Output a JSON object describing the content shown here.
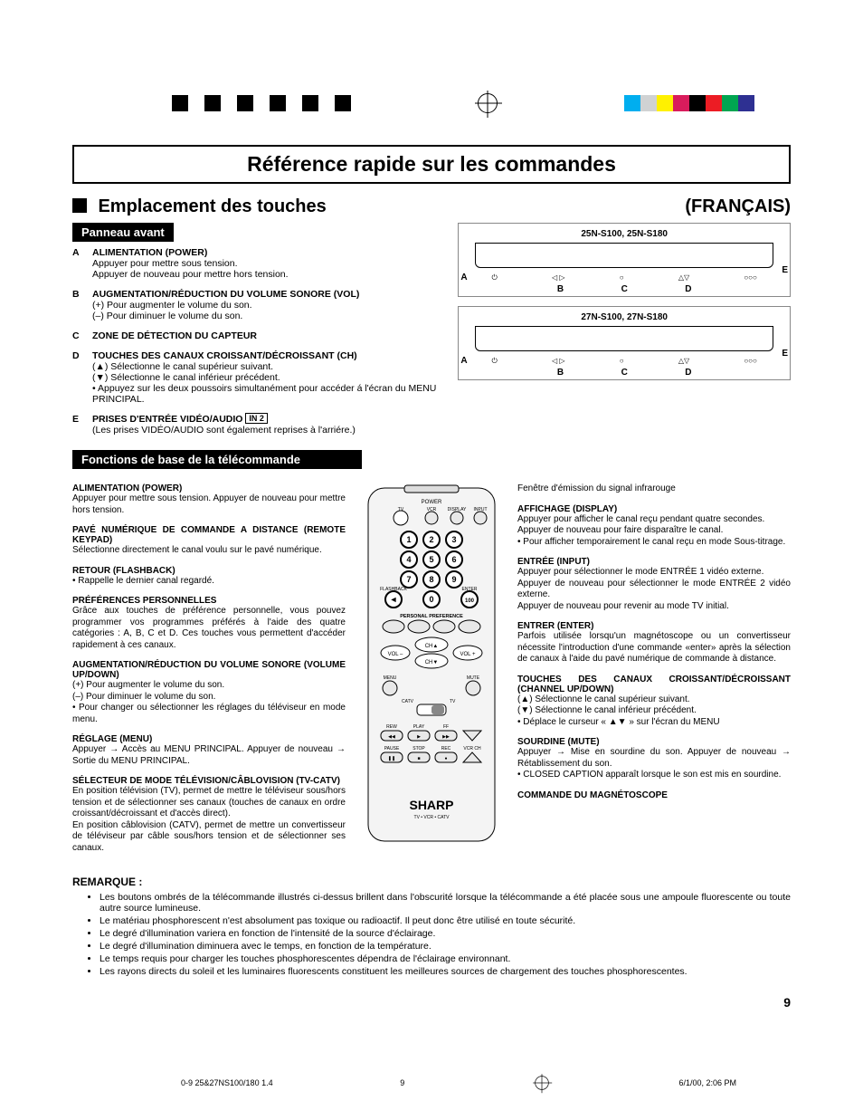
{
  "print_marks": {
    "left_bar_colors": [
      "#000",
      "#fff",
      "#000",
      "#fff",
      "#000",
      "#fff",
      "#000",
      "#fff",
      "#000",
      "#fff",
      "#000"
    ],
    "right_bar_colors": [
      "#00aeef",
      "#d0d2d3",
      "#fff100",
      "#d91c5c",
      "#000000",
      "#ec1c24",
      "#00a551",
      "#2e3092"
    ]
  },
  "title": "Référence rapide sur les commandes",
  "subtitle": "Emplacement des touches",
  "language": "(FRANÇAIS)",
  "section_front_panel": "Panneau avant",
  "front_items": [
    {
      "letter": "A",
      "title": "ALIMENTATION (POWER)",
      "lines": [
        "Appuyer pour mettre sous tension.",
        "Appuyer de nouveau pour mettre hors tension."
      ]
    },
    {
      "letter": "B",
      "title": "AUGMENTATION/RÉDUCTION DU VOLUME SONORE (VOL)",
      "lines": [
        "(+) Pour augmenter le volume du son.",
        "(–) Pour diminuer le volume du son."
      ]
    },
    {
      "letter": "C",
      "title": "ZONE DE DÉTECTION DU CAPTEUR",
      "lines": []
    },
    {
      "letter": "D",
      "title": "TOUCHES DES CANAUX CROISSANT/DÉCROISSANT (CH)",
      "lines": [
        "(▲) Sélectionne le canal supérieur suivant.",
        "(▼) Sélectionne le canal inférieur précédent.",
        "• Appuyez sur les deux poussoirs simultanément pour accéder á l'écran du MENU PRINCIPAL."
      ]
    },
    {
      "letter": "E",
      "title": "PRISES D'ENTRÉE VIDÉO/AUDIO",
      "badge": "IN 2",
      "lines": [
        "(Les prises VIDÉO/AUDIO sont également reprises à l'arriére.)"
      ]
    }
  ],
  "section_remote": "Fonctions de base de la télécommande",
  "panel1_caption": "25N-S100, 25N-S180",
  "panel2_caption": "27N-S100, 27N-S180",
  "panel_letters": [
    "A",
    "B",
    "C",
    "D",
    "E"
  ],
  "ir_window_label": "Fenêtre d'émission du signal infrarouge",
  "left_funcs": [
    {
      "title": "ALIMENTATION (POWER)",
      "body": "Appuyer pour mettre sous tension. Appuyer de nouveau pour mettre hors tension."
    },
    {
      "title": "PAVÉ NUMÉRIQUE DE COMMANDE A DISTANCE (REMOTE KEYPAD)",
      "body": "Sélectionne directement le canal voulu sur le pavé numérique."
    },
    {
      "title": "RETOUR (FLASHBACK)",
      "body": "• Rappelle le dernier canal regardé."
    },
    {
      "title": "PRÉFÉRENCES PERSONNELLES",
      "body": "Grâce aux touches de préférence personnelle, vous pouvez programmer vos programmes préférés à l'aide des quatre catégories : A, B, C et D. Ces touches vous permettent d'accéder rapidement à ces canaux."
    },
    {
      "title": "AUGMENTATION/RÉDUCTION DU VOLUME SONORE (VOLUME UP/DOWN)",
      "body": "(+) Pour augmenter le volume du son.\n(–) Pour diminuer le volume du son.\n• Pour changer ou sélectionner les réglages du téléviseur en mode menu."
    },
    {
      "title": "RÉGLAGE (MENU)",
      "body": "Appuyer → Accès au MENU PRINCIPAL. Appuyer de nouveau → Sortie du MENU PRINCIPAL."
    },
    {
      "title": "SÉLECTEUR DE MODE TÉLÉVISION/CÂBLOVISION (TV-CATV)",
      "body": "En position télévision (TV), permet de mettre le téléviseur sous/hors tension et de sélectionner ses canaux (touches de canaux en ordre croissant/décroissant et d'accès direct).\nEn position câblovision (CATV), permet de mettre un convertisseur de téléviseur par câble sous/hors tension et de sélectionner ses canaux."
    }
  ],
  "right_funcs": [
    {
      "title": "AFFICHAGE (DISPLAY)",
      "body": "Appuyer pour afficher le canal reçu pendant quatre secondes.\nAppuyer de nouveau pour faire disparaître le canal.\n• Pour afficher temporairement le canal reçu en mode Sous-titrage."
    },
    {
      "title": "ENTRÉE (INPUT)",
      "body": "Appuyer pour sélectionner le mode ENTRÉE 1 vidéo externe.\nAppuyer de nouveau pour sélectionner le mode ENTRÉE 2 vidéo externe.\nAppuyer de nouveau pour revenir au mode TV initial."
    },
    {
      "title": "ENTRER (ENTER)",
      "body": "Parfois utilisée lorsqu'un magnétoscope ou un convertisseur nécessite l'introduction d'une commande «enter» après la sélection de canaux à l'aide du pavé numérique de commande à distance."
    },
    {
      "title": "TOUCHES DES CANAUX CROISSANT/DÉCROISSANT (CHANNEL UP/DOWN)",
      "body": "(▲) Sélectionne le canal supérieur suivant.\n(▼) Sélectionne le canal inférieur précédent.\n• Déplace le curseur « ▲▼ » sur l'écran du MENU"
    },
    {
      "title": "SOURDINE (MUTE)",
      "body": "Appuyer → Mise en sourdine du son. Appuyer de nouveau → Rétablissement du son.\n• CLOSED CAPTION apparaît lorsque le son est mis en sourdine."
    },
    {
      "title": "COMMANDE DU MAGNÉTOSCOPE",
      "body": ""
    }
  ],
  "remote_labels": {
    "power": "POWER",
    "tv": "TV",
    "vcr": "VCR",
    "display": "DISPLAY",
    "input": "INPUT",
    "flashback": "FLASHBACK",
    "enter": "ENTER",
    "pp": "PERSONAL PREFERENCE",
    "vol": "VOL",
    "cha": "CH▲",
    "chv": "CH▼",
    "menu": "MENU",
    "mute": "MUTE",
    "catv": "CATV",
    "tv2": "TV",
    "rew": "REW",
    "play": "PLAY",
    "ff": "FF",
    "pause": "PAUSE",
    "stop": "STOP",
    "rec": "REC",
    "vcrch": "VCR CH",
    "brand": "SHARP",
    "brand_sub": "TV • VCR • CATV",
    "keys": [
      "1",
      "2",
      "3",
      "4",
      "5",
      "6",
      "7",
      "8",
      "9",
      "0",
      "100"
    ]
  },
  "remarque_heading": "REMARQUE :",
  "remarque_items": [
    "Les boutons ombrés de la télécommande illustrés ci-dessus brillent dans l'obscurité lorsque la télécommande a été placée sous une ampoule fluorescente ou toute autre source lumineuse.",
    "Le matériau phosphorescent n'est absolument pas toxique ou radioactif. Il peut donc être utilisé en toute sécurité.",
    "Le degré d'illumination variera en fonction de l'intensité de la source d'éclairage.",
    "Le degré d'illumination diminuera avec le temps, en fonction de la température.",
    "Le temps requis pour charger les touches phosphorescentes dépendra de l'éclairage environnant.",
    "Les rayons directs du soleil et les luminaires fluorescents constituent les meilleures sources de chargement des touches phosphorescentes."
  ],
  "page_number": "9",
  "footer_left": "0-9 25&27NS100/180 1.4",
  "footer_mid": "9",
  "footer_right": "6/1/00, 2:06 PM"
}
